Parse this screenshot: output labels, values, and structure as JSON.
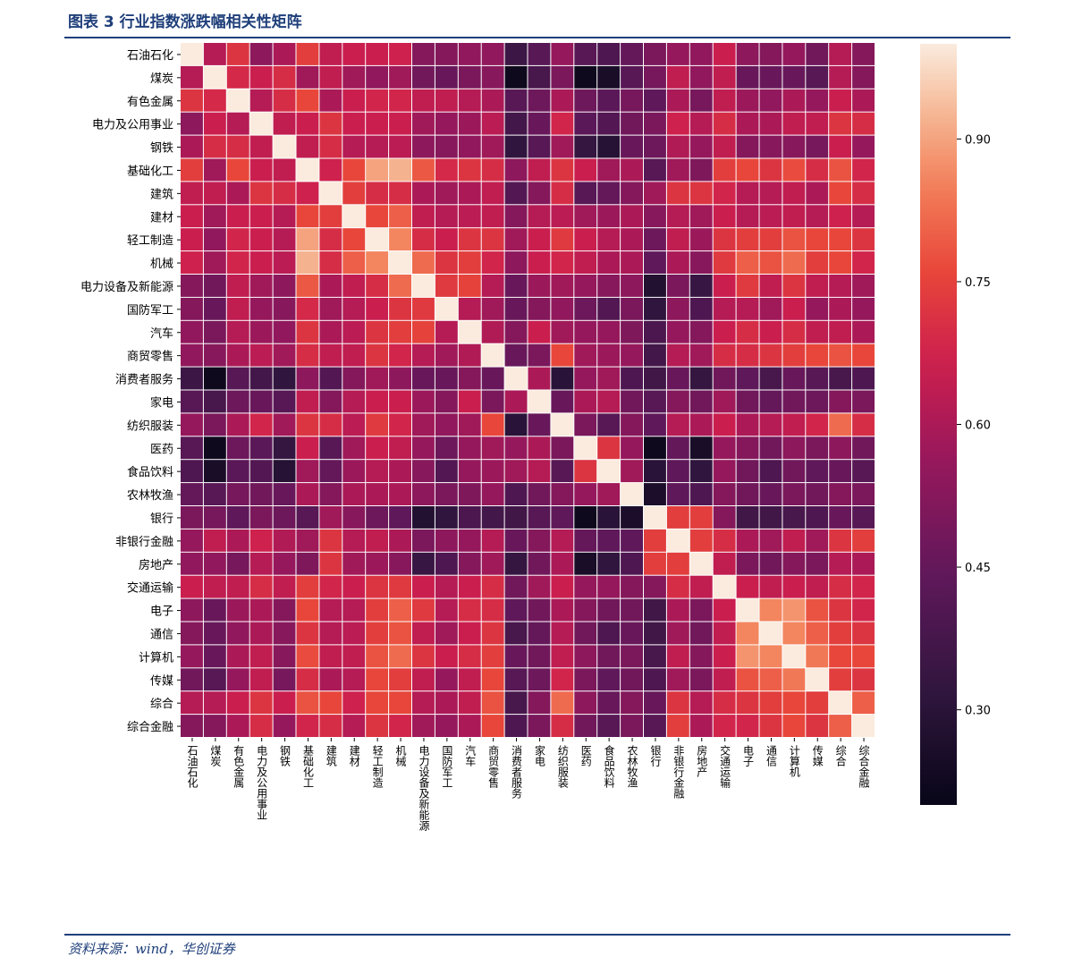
{
  "header": {
    "title": "图表 3   行业指数涨跌幅相关性矩阵"
  },
  "footer": {
    "source": "资料来源：wind，华创证券"
  },
  "chart_data": {
    "type": "heatmap",
    "title": "",
    "xlabel": "",
    "ylabel": "",
    "labels": [
      "石油石化",
      "煤炭",
      "有色金属",
      "电力及公用事业",
      "钢铁",
      "基础化工",
      "建筑",
      "建材",
      "轻工制造",
      "机械",
      "电力设备及新能源",
      "国防军工",
      "汽车",
      "商贸零售",
      "消费者服务",
      "家电",
      "纺织服装",
      "医药",
      "食品饮料",
      "农林牧渔",
      "银行",
      "非银行金融",
      "房地产",
      "交通运输",
      "电子",
      "通信",
      "计算机",
      "传媒",
      "综合",
      "综合金融"
    ],
    "colorbar": {
      "range": [
        0.2,
        1.0
      ],
      "ticks": [
        0.3,
        0.45,
        0.6,
        0.75,
        0.9
      ],
      "tick_labels": [
        "0.30",
        "0.45",
        "0.60",
        "0.75",
        "0.90"
      ],
      "colormap": "rocket"
    },
    "matrix": [
      [
        1.0,
        0.62,
        0.72,
        0.54,
        0.6,
        0.74,
        0.64,
        0.66,
        0.66,
        0.67,
        0.52,
        0.52,
        0.55,
        0.55,
        0.35,
        0.42,
        0.56,
        0.42,
        0.4,
        0.45,
        0.5,
        0.56,
        0.55,
        0.66,
        0.54,
        0.52,
        0.56,
        0.48,
        0.62,
        0.52
      ],
      [
        0.62,
        1.0,
        0.69,
        0.66,
        0.7,
        0.58,
        0.64,
        0.58,
        0.55,
        0.58,
        0.48,
        0.46,
        0.5,
        0.53,
        0.22,
        0.38,
        0.5,
        0.22,
        0.25,
        0.42,
        0.49,
        0.64,
        0.55,
        0.64,
        0.46,
        0.46,
        0.46,
        0.42,
        0.62,
        0.52
      ],
      [
        0.72,
        0.69,
        1.0,
        0.62,
        0.7,
        0.76,
        0.6,
        0.66,
        0.68,
        0.68,
        0.64,
        0.64,
        0.62,
        0.6,
        0.42,
        0.47,
        0.6,
        0.47,
        0.43,
        0.49,
        0.44,
        0.6,
        0.49,
        0.64,
        0.57,
        0.55,
        0.6,
        0.56,
        0.66,
        0.6
      ],
      [
        0.54,
        0.66,
        0.62,
        1.0,
        0.64,
        0.66,
        0.72,
        0.66,
        0.66,
        0.66,
        0.58,
        0.56,
        0.57,
        0.63,
        0.37,
        0.46,
        0.68,
        0.43,
        0.41,
        0.48,
        0.5,
        0.67,
        0.62,
        0.7,
        0.6,
        0.6,
        0.64,
        0.64,
        0.72,
        0.7
      ],
      [
        0.6,
        0.7,
        0.7,
        0.64,
        1.0,
        0.64,
        0.7,
        0.62,
        0.62,
        0.63,
        0.54,
        0.53,
        0.55,
        0.58,
        0.32,
        0.42,
        0.58,
        0.33,
        0.29,
        0.46,
        0.47,
        0.61,
        0.56,
        0.64,
        0.52,
        0.53,
        0.53,
        0.49,
        0.66,
        0.56
      ],
      [
        0.74,
        0.58,
        0.76,
        0.66,
        0.64,
        1.0,
        0.67,
        0.76,
        0.9,
        0.92,
        0.79,
        0.69,
        0.72,
        0.7,
        0.54,
        0.64,
        0.72,
        0.66,
        0.58,
        0.6,
        0.42,
        0.58,
        0.51,
        0.74,
        0.76,
        0.72,
        0.77,
        0.7,
        0.78,
        0.68
      ],
      [
        0.64,
        0.64,
        0.6,
        0.72,
        0.7,
        0.67,
        1.0,
        0.74,
        0.7,
        0.7,
        0.6,
        0.58,
        0.6,
        0.64,
        0.41,
        0.52,
        0.7,
        0.42,
        0.45,
        0.52,
        0.58,
        0.72,
        0.72,
        0.68,
        0.62,
        0.62,
        0.64,
        0.6,
        0.76,
        0.7
      ],
      [
        0.66,
        0.58,
        0.66,
        0.66,
        0.62,
        0.76,
        0.74,
        1.0,
        0.76,
        0.8,
        0.64,
        0.62,
        0.63,
        0.64,
        0.52,
        0.62,
        0.63,
        0.58,
        0.57,
        0.6,
        0.53,
        0.62,
        0.58,
        0.66,
        0.62,
        0.63,
        0.64,
        0.62,
        0.67,
        0.62
      ],
      [
        0.66,
        0.55,
        0.68,
        0.66,
        0.62,
        0.9,
        0.7,
        0.76,
        1.0,
        0.86,
        0.7,
        0.66,
        0.72,
        0.72,
        0.58,
        0.66,
        0.73,
        0.66,
        0.62,
        0.6,
        0.47,
        0.64,
        0.57,
        0.72,
        0.74,
        0.74,
        0.78,
        0.76,
        0.76,
        0.72
      ],
      [
        0.67,
        0.58,
        0.68,
        0.66,
        0.63,
        0.92,
        0.7,
        0.8,
        0.86,
        1.0,
        0.82,
        0.72,
        0.74,
        0.68,
        0.54,
        0.66,
        0.68,
        0.64,
        0.6,
        0.6,
        0.44,
        0.6,
        0.53,
        0.73,
        0.8,
        0.78,
        0.82,
        0.74,
        0.76,
        0.68
      ],
      [
        0.52,
        0.48,
        0.64,
        0.58,
        0.54,
        0.79,
        0.6,
        0.64,
        0.7,
        0.82,
        1.0,
        0.73,
        0.75,
        0.62,
        0.46,
        0.57,
        0.58,
        0.56,
        0.53,
        0.54,
        0.28,
        0.5,
        0.34,
        0.66,
        0.73,
        0.64,
        0.72,
        0.64,
        0.62,
        0.58
      ],
      [
        0.52,
        0.46,
        0.64,
        0.56,
        0.53,
        0.69,
        0.58,
        0.62,
        0.66,
        0.72,
        0.73,
        1.0,
        0.62,
        0.58,
        0.46,
        0.52,
        0.55,
        0.47,
        0.41,
        0.5,
        0.32,
        0.54,
        0.4,
        0.62,
        0.62,
        0.58,
        0.66,
        0.56,
        0.6,
        0.56
      ],
      [
        0.55,
        0.5,
        0.62,
        0.57,
        0.55,
        0.72,
        0.6,
        0.63,
        0.72,
        0.74,
        0.75,
        0.62,
        1.0,
        0.61,
        0.52,
        0.66,
        0.58,
        0.56,
        0.56,
        0.51,
        0.39,
        0.56,
        0.52,
        0.66,
        0.7,
        0.66,
        0.7,
        0.64,
        0.64,
        0.6
      ],
      [
        0.55,
        0.53,
        0.6,
        0.63,
        0.58,
        0.7,
        0.64,
        0.64,
        0.72,
        0.68,
        0.62,
        0.58,
        0.61,
        1.0,
        0.46,
        0.5,
        0.76,
        0.58,
        0.57,
        0.56,
        0.37,
        0.62,
        0.58,
        0.7,
        0.7,
        0.72,
        0.74,
        0.76,
        0.78,
        0.76
      ],
      [
        0.35,
        0.22,
        0.42,
        0.37,
        0.32,
        0.54,
        0.41,
        0.52,
        0.58,
        0.54,
        0.46,
        0.46,
        0.52,
        0.46,
        1.0,
        0.6,
        0.3,
        0.56,
        0.58,
        0.4,
        0.36,
        0.46,
        0.33,
        0.48,
        0.44,
        0.38,
        0.46,
        0.42,
        0.38,
        0.4
      ],
      [
        0.42,
        0.38,
        0.47,
        0.46,
        0.42,
        0.64,
        0.52,
        0.62,
        0.66,
        0.66,
        0.57,
        0.52,
        0.66,
        0.5,
        0.6,
        1.0,
        0.46,
        0.6,
        0.62,
        0.48,
        0.42,
        0.52,
        0.48,
        0.58,
        0.48,
        0.45,
        0.48,
        0.47,
        0.52,
        0.5
      ],
      [
        0.56,
        0.5,
        0.6,
        0.68,
        0.58,
        0.72,
        0.7,
        0.63,
        0.73,
        0.68,
        0.58,
        0.55,
        0.58,
        0.76,
        0.3,
        0.46,
        1.0,
        0.5,
        0.42,
        0.52,
        0.44,
        0.62,
        0.6,
        0.66,
        0.6,
        0.62,
        0.64,
        0.68,
        0.82,
        0.7
      ],
      [
        0.42,
        0.22,
        0.47,
        0.43,
        0.33,
        0.66,
        0.42,
        0.58,
        0.66,
        0.64,
        0.56,
        0.47,
        0.56,
        0.58,
        0.56,
        0.6,
        0.5,
        1.0,
        0.72,
        0.56,
        0.22,
        0.45,
        0.25,
        0.56,
        0.52,
        0.48,
        0.54,
        0.5,
        0.54,
        0.48
      ],
      [
        0.4,
        0.25,
        0.43,
        0.41,
        0.29,
        0.58,
        0.45,
        0.57,
        0.62,
        0.6,
        0.53,
        0.41,
        0.56,
        0.57,
        0.58,
        0.62,
        0.42,
        0.72,
        1.0,
        0.58,
        0.3,
        0.44,
        0.32,
        0.56,
        0.48,
        0.4,
        0.48,
        0.44,
        0.46,
        0.42
      ],
      [
        0.45,
        0.42,
        0.49,
        0.48,
        0.46,
        0.6,
        0.52,
        0.6,
        0.6,
        0.6,
        0.54,
        0.5,
        0.51,
        0.56,
        0.4,
        0.48,
        0.52,
        0.56,
        0.58,
        1.0,
        0.26,
        0.44,
        0.4,
        0.52,
        0.48,
        0.46,
        0.5,
        0.48,
        0.52,
        0.5
      ],
      [
        0.5,
        0.49,
        0.44,
        0.5,
        0.47,
        0.42,
        0.58,
        0.53,
        0.47,
        0.44,
        0.28,
        0.32,
        0.39,
        0.37,
        0.36,
        0.42,
        0.44,
        0.22,
        0.3,
        0.26,
        1.0,
        0.74,
        0.74,
        0.52,
        0.36,
        0.36,
        0.38,
        0.4,
        0.46,
        0.42
      ],
      [
        0.56,
        0.64,
        0.6,
        0.67,
        0.61,
        0.58,
        0.72,
        0.62,
        0.64,
        0.6,
        0.5,
        0.54,
        0.56,
        0.62,
        0.46,
        0.52,
        0.62,
        0.45,
        0.44,
        0.44,
        0.74,
        1.0,
        0.74,
        0.7,
        0.6,
        0.58,
        0.64,
        0.58,
        0.72,
        0.74
      ],
      [
        0.55,
        0.55,
        0.49,
        0.62,
        0.56,
        0.51,
        0.72,
        0.58,
        0.57,
        0.53,
        0.34,
        0.4,
        0.52,
        0.58,
        0.33,
        0.48,
        0.6,
        0.25,
        0.32,
        0.4,
        0.74,
        0.74,
        1.0,
        0.64,
        0.5,
        0.48,
        0.52,
        0.5,
        0.62,
        0.6
      ],
      [
        0.66,
        0.64,
        0.64,
        0.7,
        0.64,
        0.74,
        0.68,
        0.66,
        0.72,
        0.73,
        0.66,
        0.62,
        0.66,
        0.7,
        0.48,
        0.58,
        0.66,
        0.56,
        0.56,
        0.52,
        0.52,
        0.7,
        0.64,
        1.0,
        0.66,
        0.64,
        0.66,
        0.64,
        0.7,
        0.68
      ],
      [
        0.54,
        0.46,
        0.57,
        0.6,
        0.52,
        0.76,
        0.62,
        0.62,
        0.74,
        0.8,
        0.73,
        0.62,
        0.7,
        0.7,
        0.44,
        0.48,
        0.6,
        0.52,
        0.48,
        0.48,
        0.36,
        0.6,
        0.5,
        0.66,
        1.0,
        0.86,
        0.88,
        0.78,
        0.72,
        0.68
      ],
      [
        0.52,
        0.46,
        0.55,
        0.6,
        0.53,
        0.72,
        0.62,
        0.63,
        0.74,
        0.78,
        0.64,
        0.58,
        0.66,
        0.72,
        0.38,
        0.45,
        0.62,
        0.48,
        0.4,
        0.46,
        0.36,
        0.58,
        0.48,
        0.64,
        0.86,
        1.0,
        0.86,
        0.8,
        0.74,
        0.72
      ],
      [
        0.56,
        0.46,
        0.6,
        0.64,
        0.53,
        0.77,
        0.64,
        0.64,
        0.78,
        0.82,
        0.72,
        0.66,
        0.7,
        0.74,
        0.46,
        0.48,
        0.64,
        0.54,
        0.48,
        0.5,
        0.38,
        0.64,
        0.52,
        0.66,
        0.88,
        0.86,
        1.0,
        0.84,
        0.76,
        0.76
      ],
      [
        0.48,
        0.42,
        0.56,
        0.64,
        0.49,
        0.7,
        0.6,
        0.62,
        0.76,
        0.74,
        0.64,
        0.56,
        0.64,
        0.76,
        0.42,
        0.47,
        0.68,
        0.5,
        0.44,
        0.48,
        0.4,
        0.58,
        0.5,
        0.64,
        0.78,
        0.8,
        0.84,
        1.0,
        0.74,
        0.72
      ],
      [
        0.62,
        0.62,
        0.66,
        0.72,
        0.66,
        0.78,
        0.76,
        0.67,
        0.76,
        0.76,
        0.62,
        0.6,
        0.64,
        0.78,
        0.38,
        0.52,
        0.82,
        0.54,
        0.46,
        0.52,
        0.46,
        0.72,
        0.62,
        0.7,
        0.72,
        0.74,
        0.76,
        0.74,
        1.0,
        0.8
      ],
      [
        0.52,
        0.52,
        0.6,
        0.7,
        0.56,
        0.68,
        0.7,
        0.62,
        0.72,
        0.68,
        0.58,
        0.56,
        0.6,
        0.76,
        0.4,
        0.5,
        0.7,
        0.48,
        0.42,
        0.5,
        0.42,
        0.74,
        0.6,
        0.68,
        0.68,
        0.72,
        0.76,
        0.72,
        0.8,
        1.0
      ]
    ]
  }
}
